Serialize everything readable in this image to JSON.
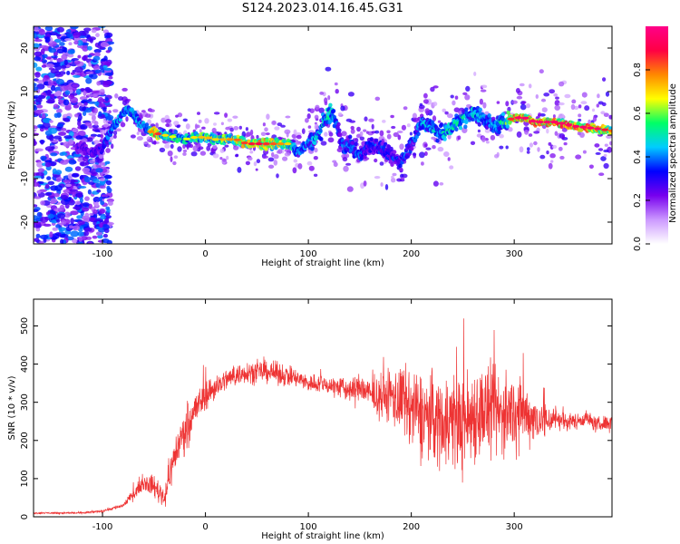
{
  "title": "S124.2023.014.16.45.G31",
  "colors": {
    "snr_line": "#ee3333",
    "frame": "#000000",
    "background": "#ffffff"
  },
  "chart_data": [
    {
      "type": "heatmap",
      "title": "S124.2023.014.16.45.G31",
      "xlabel": "Height of straight line (km)",
      "ylabel": "Frequency (Hz)",
      "xlim": [
        -167,
        395
      ],
      "ylim": [
        -25,
        25
      ],
      "x_ticks": [
        -100,
        0,
        100,
        200,
        300
      ],
      "y_ticks": [
        -20,
        -10,
        0,
        10,
        20
      ],
      "colorbar": {
        "label": "Normalized spectral amplitude",
        "range": [
          0.0,
          1.0
        ],
        "ticks": [
          0.0,
          0.2,
          0.4,
          0.6,
          0.8
        ],
        "colormap": [
          "#ffffff",
          "#cc99ff",
          "#7700ee",
          "#0000ff",
          "#00ccff",
          "#00ff66",
          "#ffff00",
          "#ff8800",
          "#ff0044",
          "#ff0088"
        ]
      },
      "ridge": {
        "x": [
          -120,
          -110,
          -100,
          -90,
          -80,
          -75,
          -70,
          -65,
          -60,
          -55,
          -50,
          -40,
          -30,
          -20,
          -10,
          0,
          10,
          20,
          30,
          40,
          50,
          60,
          70,
          80,
          90,
          95,
          100,
          110,
          115,
          120,
          125,
          130,
          135,
          140,
          150,
          160,
          170,
          180,
          190,
          200,
          210,
          220,
          230,
          240,
          250,
          260,
          270,
          280,
          290,
          300,
          310,
          320,
          340,
          360,
          380,
          395
        ],
        "y": [
          -3,
          -4,
          -3,
          2,
          5,
          6,
          5,
          3,
          2,
          1,
          0.5,
          0,
          -0.5,
          -1,
          -0.5,
          -0.5,
          -1,
          -1,
          -1,
          -2,
          -2,
          -2,
          -2,
          -2,
          -4,
          -3,
          -2,
          0,
          3,
          5,
          4,
          0,
          -3,
          -2,
          -5,
          -2,
          -3,
          -5,
          -6,
          -2,
          3,
          2,
          0,
          2,
          4,
          5,
          4,
          2,
          3,
          4,
          4,
          3,
          3,
          2,
          1.5,
          1
        ]
      },
      "ridge_amplitude": [
        0.3,
        0.3,
        0.35,
        0.45,
        0.5,
        0.5,
        0.5,
        0.45,
        0.45,
        0.55,
        0.85,
        0.6,
        0.55,
        0.55,
        0.6,
        0.65,
        0.6,
        0.65,
        0.7,
        0.75,
        0.8,
        0.75,
        0.7,
        0.6,
        0.45,
        0.4,
        0.45,
        0.5,
        0.5,
        0.55,
        0.5,
        0.4,
        0.4,
        0.45,
        0.4,
        0.35,
        0.4,
        0.35,
        0.4,
        0.4,
        0.45,
        0.5,
        0.5,
        0.55,
        0.5,
        0.5,
        0.45,
        0.45,
        0.55,
        0.85,
        0.85,
        0.85,
        0.85,
        0.85,
        0.85,
        0.7
      ],
      "grid": false
    },
    {
      "type": "line",
      "xlabel": "Height of straight line (km)",
      "ylabel": "SNR (10 * v/v)",
      "xlim": [
        -167,
        395
      ],
      "ylim": [
        0,
        570
      ],
      "x_ticks": [
        -100,
        0,
        100,
        200,
        300
      ],
      "y_ticks": [
        0,
        100,
        200,
        300,
        400,
        500
      ],
      "series": [
        {
          "x": [
            -167,
            -150,
            -120,
            -100,
            -80,
            -70,
            -60,
            -50,
            -40,
            -30,
            -20,
            -10,
            0,
            10,
            20,
            30,
            40,
            50,
            60,
            70,
            80,
            90,
            100,
            110,
            120,
            130,
            140,
            150,
            160,
            170,
            180,
            190,
            200,
            210,
            220,
            230,
            240,
            250,
            260,
            270,
            280,
            290,
            300,
            310,
            320,
            330,
            340,
            350,
            360,
            370,
            380,
            395
          ],
          "y": [
            10,
            10,
            10,
            15,
            30,
            60,
            90,
            80,
            50,
            160,
            230,
            280,
            320,
            340,
            360,
            370,
            380,
            380,
            380,
            375,
            370,
            360,
            350,
            350,
            345,
            340,
            330,
            340,
            320,
            310,
            320,
            300,
            280,
            270,
            260,
            250,
            260,
            240,
            270,
            280,
            270,
            270,
            280,
            270,
            260,
            250,
            260,
            250,
            250,
            260,
            240,
            250
          ],
          "spread": [
            3,
            3,
            3,
            4,
            8,
            15,
            25,
            35,
            40,
            60,
            70,
            60,
            50,
            40,
            35,
            35,
            35,
            35,
            35,
            35,
            35,
            30,
            30,
            30,
            30,
            35,
            40,
            45,
            50,
            60,
            90,
            120,
            130,
            130,
            140,
            150,
            160,
            160,
            160,
            150,
            150,
            130,
            120,
            100,
            80,
            60,
            40,
            30,
            25,
            25,
            25,
            25
          ]
        }
      ],
      "grid": false
    }
  ]
}
